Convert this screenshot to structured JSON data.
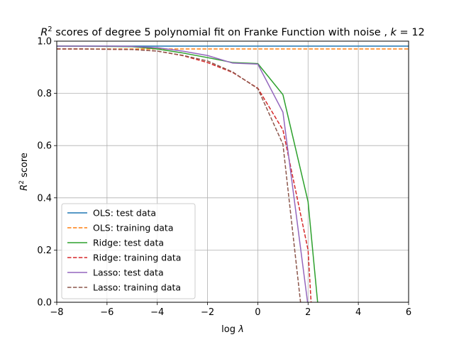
{
  "chart_data": {
    "type": "line",
    "title_parts": {
      "r": "R",
      "sup": "2",
      "main": " scores of degree 5 polynomial fit on Franke Function with noise , ",
      "k": "k",
      "eq": " = 12"
    },
    "xlabel_parts": {
      "log": "log ",
      "lambda": "λ"
    },
    "ylabel_parts": {
      "r": "R",
      "sup": "2",
      "rest": " score"
    },
    "xlim": [
      -8,
      6
    ],
    "ylim": [
      0,
      1
    ],
    "xticks": [
      -8,
      -6,
      -4,
      -2,
      0,
      2,
      4,
      6
    ],
    "xtick_labels": [
      "−8",
      "−6",
      "−4",
      "−2",
      "0",
      "2",
      "4",
      "6"
    ],
    "yticks": [
      0,
      0.2,
      0.4,
      0.6,
      0.8,
      1.0
    ],
    "ytick_labels": [
      "0.0",
      "0.2",
      "0.4",
      "0.6",
      "0.8",
      "1.0"
    ],
    "grid": true,
    "legend_position": "lower-left",
    "series": [
      {
        "name": "OLS: test data",
        "color": "#1f77b4",
        "dash": "solid",
        "x": [
          -8,
          -7,
          -6,
          -5,
          -4,
          -3,
          -2,
          -1,
          0,
          1,
          2,
          3,
          4,
          5,
          6
        ],
        "y": [
          0.981,
          0.981,
          0.981,
          0.981,
          0.981,
          0.981,
          0.981,
          0.981,
          0.981,
          0.981,
          0.981,
          0.981,
          0.981,
          0.981,
          0.981
        ]
      },
      {
        "name": "OLS: training data",
        "color": "#ff7f0e",
        "dash": "dashed",
        "x": [
          -8,
          -7,
          -6,
          -5,
          -4,
          -3,
          -2,
          -1,
          0,
          1,
          2,
          3,
          4,
          5,
          6
        ],
        "y": [
          0.97,
          0.97,
          0.97,
          0.97,
          0.97,
          0.97,
          0.97,
          0.97,
          0.97,
          0.97,
          0.97,
          0.97,
          0.97,
          0.97,
          0.97
        ]
      },
      {
        "name": "Ridge: test data",
        "color": "#2ca02c",
        "dash": "solid",
        "x": [
          -8,
          -7,
          -6,
          -5,
          -4,
          -3,
          -2,
          -1,
          0,
          1,
          2,
          2.38
        ],
        "y": [
          0.981,
          0.981,
          0.98,
          0.979,
          0.97,
          0.955,
          0.937,
          0.918,
          0.914,
          0.795,
          0.385,
          0.0
        ]
      },
      {
        "name": "Ridge: training data",
        "color": "#d62728",
        "dash": "dashed",
        "x": [
          -8,
          -7,
          -6,
          -5,
          -4,
          -3,
          -2,
          -1,
          0,
          1,
          2,
          2.12
        ],
        "y": [
          0.97,
          0.97,
          0.969,
          0.968,
          0.962,
          0.945,
          0.918,
          0.88,
          0.82,
          0.66,
          0.2,
          0.0
        ]
      },
      {
        "name": "Lasso: test data",
        "color": "#9467bd",
        "dash": "solid",
        "x": [
          -8,
          -7,
          -6,
          -5,
          -4,
          -3,
          -2,
          -1,
          0,
          1,
          1.98
        ],
        "y": [
          0.981,
          0.981,
          0.981,
          0.98,
          0.975,
          0.962,
          0.945,
          0.916,
          0.912,
          0.728,
          0.0
        ]
      },
      {
        "name": "Lasso: training data",
        "color": "#8c564b",
        "dash": "dashed",
        "x": [
          -8,
          -7,
          -6,
          -5,
          -4,
          -3,
          -2,
          -1,
          0,
          1,
          1.7
        ],
        "y": [
          0.97,
          0.97,
          0.969,
          0.968,
          0.962,
          0.946,
          0.924,
          0.882,
          0.818,
          0.605,
          0.0
        ]
      }
    ]
  }
}
